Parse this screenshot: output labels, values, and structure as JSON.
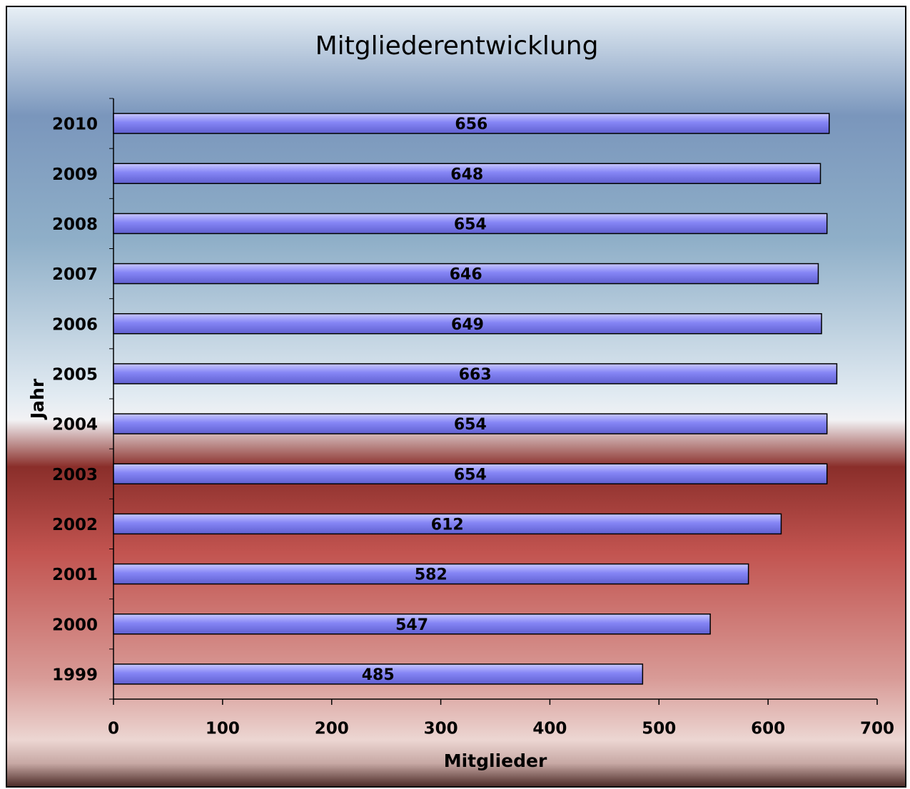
{
  "chart_data": {
    "type": "bar",
    "orientation": "horizontal",
    "title": "Mitgliederentwicklung",
    "x_label": "Mitglieder",
    "y_label": "Jahr",
    "categories": [
      "1999",
      "2000",
      "2001",
      "2002",
      "2003",
      "2004",
      "2005",
      "2006",
      "2007",
      "2008",
      "2009",
      "2010"
    ],
    "values": [
      485,
      547,
      582,
      612,
      654,
      654,
      663,
      649,
      646,
      654,
      648,
      656
    ],
    "color": "#8585f5",
    "xlim": [
      0,
      700
    ],
    "xticks": [
      0,
      100,
      200,
      300,
      400,
      500,
      600,
      700
    ]
  }
}
